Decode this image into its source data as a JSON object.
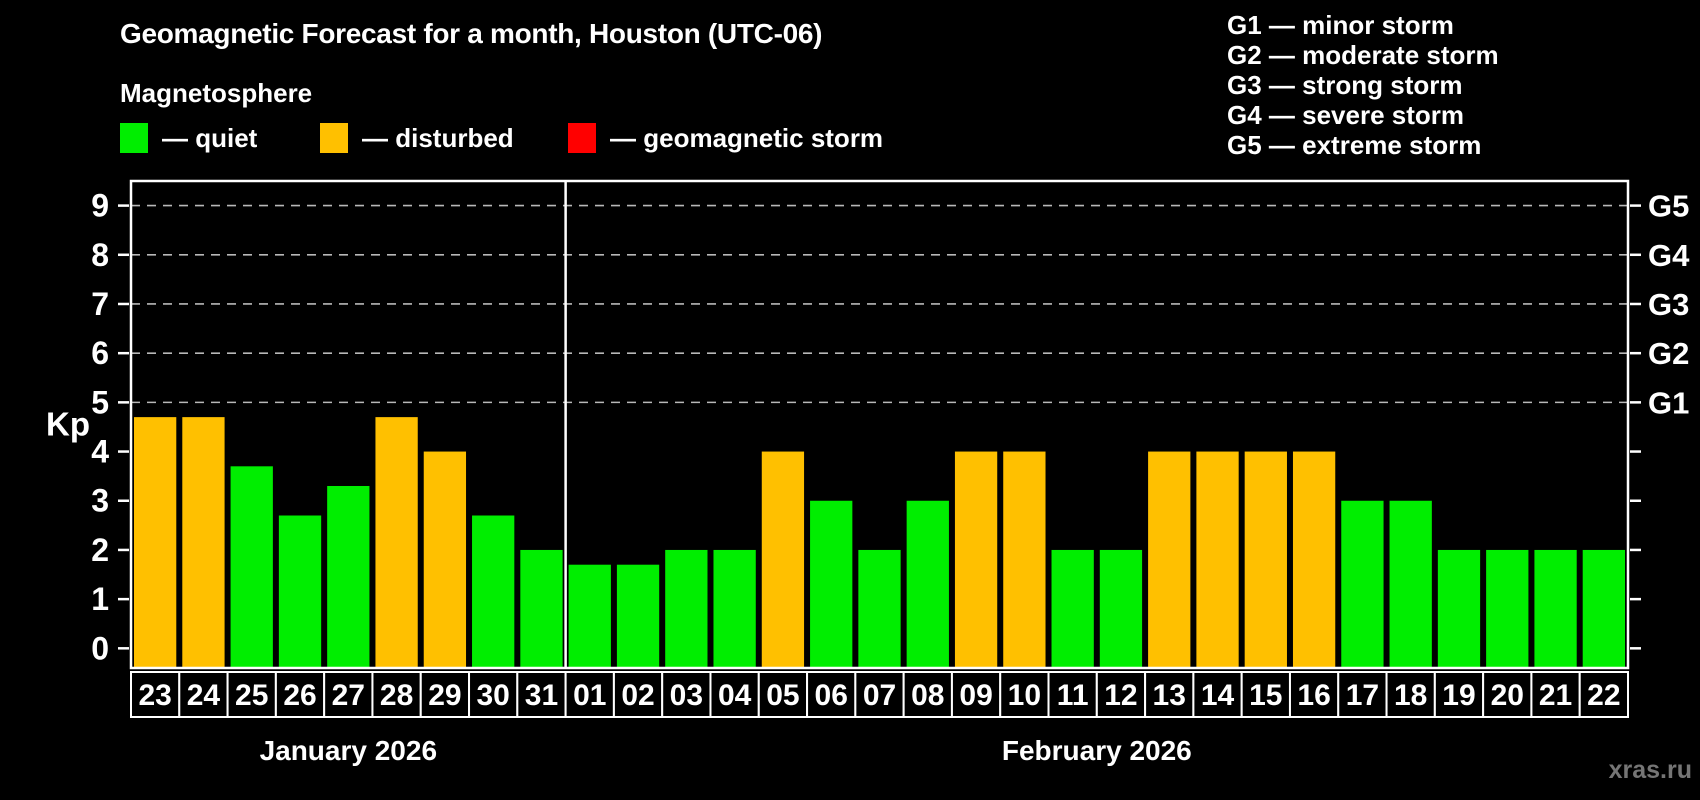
{
  "title": "Geomagnetic Forecast for a month, Houston (UTC-06)",
  "subtitle": "Magnetosphere",
  "legend": {
    "items": [
      {
        "status": "quiet",
        "label": "— quiet",
        "color": "#00ee00"
      },
      {
        "status": "disturbed",
        "label": "— disturbed",
        "color": "#ffc000"
      },
      {
        "status": "storm",
        "label": "— geomagnetic storm",
        "color": "#ff0000"
      }
    ]
  },
  "g_scale_legend": [
    "G1 — minor storm",
    "G2 — moderate storm",
    "G3 — strong storm",
    "G4 — severe storm",
    "G5 — extreme storm"
  ],
  "watermark": "xras.ru",
  "chart_data": {
    "type": "bar",
    "title": "Geomagnetic Forecast for a month, Houston (UTC-06)",
    "ylabel": "Kp",
    "xlabel": "",
    "ylim": [
      -0.4,
      9.5
    ],
    "y_ticks": [
      0,
      1,
      2,
      3,
      4,
      5,
      6,
      7,
      8,
      9
    ],
    "gridlines_at": [
      5,
      6,
      7,
      8,
      9
    ],
    "grid": "dashed horizontal at G-storm levels only",
    "legend_position": "top",
    "colors": {
      "quiet": "#00ee00",
      "disturbed": "#ffc000",
      "storm": "#ff0000"
    },
    "g_ticks": [
      {
        "label": "G1",
        "kp": 5
      },
      {
        "label": "G2",
        "kp": 6
      },
      {
        "label": "G3",
        "kp": 7
      },
      {
        "label": "G4",
        "kp": 8
      },
      {
        "label": "G5",
        "kp": 9
      }
    ],
    "months": [
      {
        "label": "January 2026",
        "days": 9
      },
      {
        "label": "February 2026",
        "days": 22
      }
    ],
    "bars": [
      {
        "date": "23",
        "kp": 4.7,
        "status": "disturbed"
      },
      {
        "date": "24",
        "kp": 4.7,
        "status": "disturbed"
      },
      {
        "date": "25",
        "kp": 3.7,
        "status": "quiet"
      },
      {
        "date": "26",
        "kp": 2.7,
        "status": "quiet"
      },
      {
        "date": "27",
        "kp": 3.3,
        "status": "quiet"
      },
      {
        "date": "28",
        "kp": 4.7,
        "status": "disturbed"
      },
      {
        "date": "29",
        "kp": 4.0,
        "status": "disturbed"
      },
      {
        "date": "30",
        "kp": 2.7,
        "status": "quiet"
      },
      {
        "date": "31",
        "kp": 2.0,
        "status": "quiet"
      },
      {
        "date": "01",
        "kp": 1.7,
        "status": "quiet"
      },
      {
        "date": "02",
        "kp": 1.7,
        "status": "quiet"
      },
      {
        "date": "03",
        "kp": 2.0,
        "status": "quiet"
      },
      {
        "date": "04",
        "kp": 2.0,
        "status": "quiet"
      },
      {
        "date": "05",
        "kp": 4.0,
        "status": "disturbed"
      },
      {
        "date": "06",
        "kp": 3.0,
        "status": "quiet"
      },
      {
        "date": "07",
        "kp": 2.0,
        "status": "quiet"
      },
      {
        "date": "08",
        "kp": 3.0,
        "status": "quiet"
      },
      {
        "date": "09",
        "kp": 4.0,
        "status": "disturbed"
      },
      {
        "date": "10",
        "kp": 4.0,
        "status": "disturbed"
      },
      {
        "date": "11",
        "kp": 2.0,
        "status": "quiet"
      },
      {
        "date": "12",
        "kp": 2.0,
        "status": "quiet"
      },
      {
        "date": "13",
        "kp": 4.0,
        "status": "disturbed"
      },
      {
        "date": "14",
        "kp": 4.0,
        "status": "disturbed"
      },
      {
        "date": "15",
        "kp": 4.0,
        "status": "disturbed"
      },
      {
        "date": "16",
        "kp": 4.0,
        "status": "disturbed"
      },
      {
        "date": "17",
        "kp": 3.0,
        "status": "quiet"
      },
      {
        "date": "18",
        "kp": 3.0,
        "status": "quiet"
      },
      {
        "date": "19",
        "kp": 2.0,
        "status": "quiet"
      },
      {
        "date": "20",
        "kp": 2.0,
        "status": "quiet"
      },
      {
        "date": "21",
        "kp": 2.0,
        "status": "quiet"
      },
      {
        "date": "22",
        "kp": 2.0,
        "status": "quiet"
      }
    ]
  }
}
